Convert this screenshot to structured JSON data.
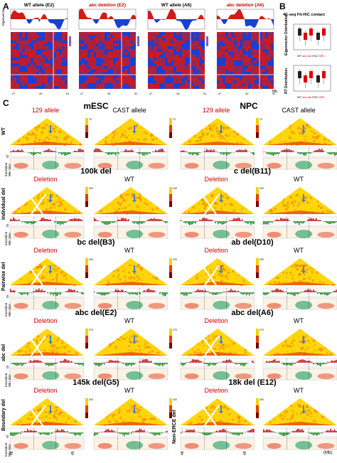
{
  "panel_a": {
    "label": "A",
    "headers": [
      "WT allele (E2)",
      "abc deletion (E2)",
      "WT allele (A6)",
      "abc deletion (A6)"
    ],
    "header_colors": [
      "black",
      "red",
      "black",
      "red"
    ],
    "track_label": "Eigenvector",
    "mb_label": "Mb",
    "x_ticks": [
      "47",
      "49",
      "51"
    ]
  },
  "panel_b": {
    "label": "B",
    "title": "4C-seq  Fit-HiC contact",
    "top_ylabel": "Eigenvector Distribution",
    "bottom_ylabel": "RT Distribution",
    "legend": [
      "WT",
      "abc",
      "del",
      "ESC",
      "NPC"
    ]
  },
  "panel_c": {
    "label": "C",
    "col_titles": [
      "mESC",
      "NPC"
    ],
    "wt_row": {
      "side_label": "WT",
      "alleles": [
        "129 allele",
        "CAST allele",
        "129 allele",
        "CAST allele"
      ]
    },
    "rows": [
      {
        "side_label": "Individual del",
        "titles": [
          "100k del",
          "c del(B11)"
        ],
        "sub": [
          "Deletion",
          "WT",
          "Deletion",
          "WT"
        ]
      },
      {
        "side_label": "Pairwise del",
        "titles": [
          "bc del(B3)",
          "ab del(D10)"
        ],
        "sub": [
          "Deletion",
          "WT",
          "Deletion",
          "WT"
        ]
      },
      {
        "side_label": "abc del",
        "titles": [
          "abc del(E2)",
          "abc del(A6)"
        ],
        "sub": [
          "Deletion",
          "WT",
          "Deletion",
          "WT"
        ]
      },
      {
        "side_label": "Boundary del",
        "titles": [
          "145k del(G5)",
          "18k del (E12)"
        ],
        "sub": [
          "Deletion",
          "WT",
          "Deletion",
          "WT"
        ]
      }
    ],
    "alt_side_label": "Non-ERCE del",
    "track_labels": [
      "DI",
      "Insulation",
      "Win Size"
    ],
    "x_ticks": [
      "48",
      "49",
      "48",
      "49"
    ],
    "mb_label": "(Mb)",
    "colorbar_max": [
      "70",
      "70",
      "70",
      "70",
      "200",
      "200",
      "200",
      "200",
      "200",
      "200",
      "200",
      "200",
      "270",
      "270",
      "270",
      "270",
      "200",
      "200",
      "200",
      "200"
    ]
  },
  "colors": {
    "heat_red": "#d11a1a",
    "heat_blue": "#1a3fd1",
    "tri_yellow": "#ffd60a",
    "tri_orange": "#f07a10",
    "di_red": "#c01818",
    "di_green": "#2a8a2a",
    "ins_green": "#3aa870",
    "ins_red": "#e84a2a",
    "arrow_blue": "#4a7fd0"
  }
}
